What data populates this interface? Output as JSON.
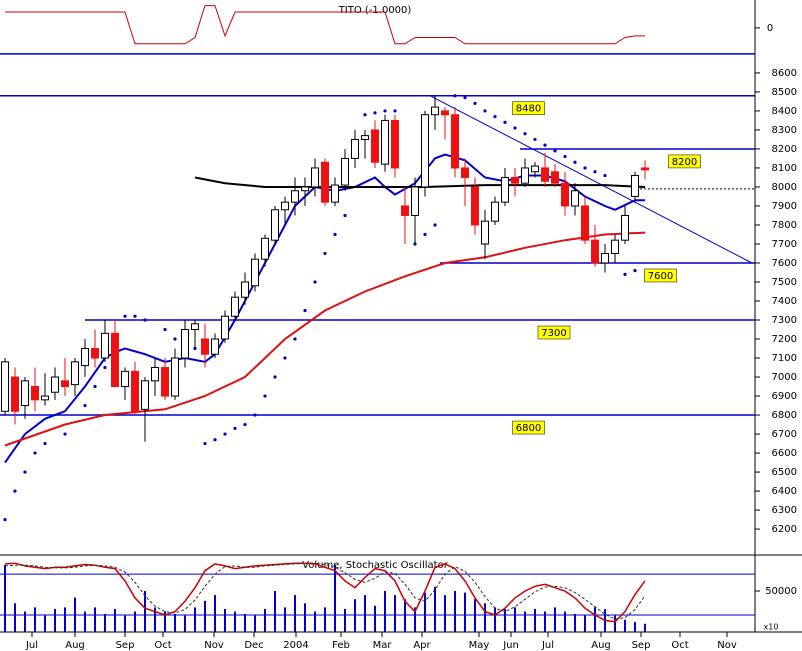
{
  "chart_data": [
    {
      "type": "candlestick",
      "xlim": [
        -0.5,
        75
      ],
      "xticks": [
        {
          "value": 2.7,
          "label": "Jul"
        },
        {
          "value": 7,
          "label": "Aug"
        },
        {
          "value": 12,
          "label": "Sep"
        },
        {
          "value": 15.8,
          "label": "Oct"
        },
        {
          "value": 20.9,
          "label": "Nov"
        },
        {
          "value": 24.9,
          "label": "Dec"
        },
        {
          "value": 29.1,
          "label": "2004"
        },
        {
          "value": 33.6,
          "label": "Feb"
        },
        {
          "value": 37.7,
          "label": "Mar"
        },
        {
          "value": 41.7,
          "label": "Apr"
        },
        {
          "value": 47.4,
          "label": "May"
        },
        {
          "value": 50.6,
          "label": "Jun"
        },
        {
          "value": 54.3,
          "label": "Jul"
        },
        {
          "value": 59.6,
          "label": "Aug"
        },
        {
          "value": 63.6,
          "label": "Sep"
        },
        {
          "value": 67.5,
          "label": "Oct"
        },
        {
          "value": 72.2,
          "label": "Nov"
        }
      ],
      "ylim": [
        6090,
        8710
      ],
      "yticks": [
        8600,
        8500,
        8400,
        8300,
        8200,
        8100,
        8000,
        7900,
        7800,
        7700,
        7600,
        7500,
        7400,
        7300,
        7200,
        7100,
        7000,
        6900,
        6800,
        6700,
        6600,
        6500,
        6400,
        6300,
        6200
      ],
      "open": [
        6820,
        7000,
        6850,
        6950,
        6880,
        6920,
        6980,
        6960,
        7060,
        7150,
        7100,
        7230,
        6950,
        7030,
        6830,
        6980,
        7050,
        6900,
        7100,
        7250,
        7200,
        7120,
        7200,
        7320,
        7420,
        7480,
        7620,
        7720,
        7880,
        7920,
        7980,
        8000,
        8130,
        7920,
        8010,
        8150,
        8250,
        8300,
        8120,
        8350,
        7900,
        7850,
        8000,
        8380,
        8400,
        8380,
        8100,
        8000,
        7700,
        7820,
        7920,
        8050,
        8020,
        8080,
        8100,
        8080,
        8020,
        7900,
        7900,
        7720,
        7600,
        7650,
        7720,
        7950,
        8100
      ],
      "high": [
        7100,
        7050,
        7000,
        7050,
        7020,
        7050,
        7100,
        7100,
        7200,
        7250,
        7300,
        7300,
        7050,
        7080,
        7000,
        7100,
        7100,
        7150,
        7300,
        7300,
        7280,
        7230,
        7350,
        7450,
        7550,
        7650,
        7750,
        7900,
        7950,
        8050,
        8050,
        8150,
        8150,
        8050,
        8200,
        8300,
        8300,
        8350,
        8380,
        8380,
        8000,
        8050,
        8400,
        8480,
        8420,
        8420,
        8150,
        8050,
        7880,
        7950,
        8100,
        8100,
        8150,
        8130,
        8180,
        8120,
        8080,
        8020,
        7950,
        7800,
        7700,
        7750,
        7900,
        8080,
        8140
      ],
      "low": [
        6800,
        6750,
        6780,
        6820,
        6850,
        6880,
        6900,
        6900,
        7000,
        7050,
        7080,
        6950,
        6880,
        6800,
        6660,
        6900,
        6880,
        6880,
        7050,
        7150,
        7050,
        7100,
        7180,
        7300,
        7380,
        7450,
        7580,
        7700,
        7800,
        7850,
        7900,
        7950,
        7900,
        7900,
        7980,
        8100,
        8150,
        8100,
        8080,
        8050,
        7700,
        7700,
        7950,
        8300,
        8250,
        8050,
        7900,
        7750,
        7620,
        7800,
        7900,
        7950,
        8000,
        8050,
        8000,
        8000,
        7850,
        7850,
        7700,
        7580,
        7550,
        7600,
        7700,
        7920,
        8040
      ],
      "close": [
        7080,
        6820,
        6980,
        6880,
        6900,
        7000,
        6950,
        7080,
        7150,
        7100,
        7230,
        6950,
        7030,
        6820,
        6980,
        7050,
        6900,
        7100,
        7250,
        7280,
        7120,
        7200,
        7320,
        7420,
        7500,
        7620,
        7730,
        7880,
        7920,
        7980,
        8000,
        8100,
        7920,
        8010,
        8150,
        8250,
        8270,
        8130,
        8350,
        8100,
        7850,
        8000,
        8380,
        8420,
        8380,
        8100,
        8050,
        7800,
        7820,
        7920,
        8050,
        8020,
        8100,
        8110,
        8030,
        8020,
        7900,
        7980,
        7720,
        7600,
        7650,
        7720,
        7850,
        8060,
        8090
      ],
      "up_color": "#ffffff",
      "down_color": "#ee1111",
      "series": [
        {
          "color": "#0000cc",
          "x": [
            0,
            2,
            4,
            6,
            8,
            10,
            11,
            12,
            14,
            16,
            18,
            20,
            21,
            23,
            25,
            27,
            29,
            31,
            33,
            35,
            37,
            38,
            39,
            41,
            43,
            44,
            46,
            48,
            50,
            52,
            54,
            56,
            58,
            60,
            61,
            63,
            64
          ],
          "values": [
            6550,
            6700,
            6780,
            6820,
            6950,
            7100,
            7130,
            7150,
            7120,
            7080,
            7100,
            7080,
            7120,
            7300,
            7500,
            7700,
            7900,
            8000,
            7980,
            8000,
            8050,
            8000,
            7960,
            8020,
            8150,
            8170,
            8140,
            8050,
            8030,
            8060,
            8060,
            8030,
            7950,
            7900,
            7880,
            7930,
            7930
          ]
        },
        {
          "color": "#dd1111",
          "x": [
            0,
            6,
            10,
            16,
            20,
            24,
            28,
            32,
            36,
            40,
            44,
            48,
            52,
            56,
            60,
            64
          ],
          "values": [
            6640,
            6750,
            6800,
            6830,
            6900,
            7000,
            7200,
            7350,
            7450,
            7530,
            7600,
            7630,
            7680,
            7720,
            7750,
            7760
          ]
        },
        {
          "color": "#000000",
          "x": [
            19,
            22,
            26,
            30,
            36,
            42,
            48,
            54,
            60,
            64
          ],
          "values": [
            8050,
            8020,
            8000,
            8000,
            8000,
            8000,
            8010,
            8010,
            8010,
            8000
          ]
        }
      ],
      "sar": {
        "color": "#0000cc",
        "x": [
          0,
          1,
          2,
          3,
          4,
          6,
          8,
          9,
          10,
          11,
          12,
          13,
          14,
          16,
          17,
          18,
          19,
          20,
          21,
          22,
          23,
          24,
          25,
          26,
          27,
          28,
          29,
          30,
          31,
          32,
          33,
          34,
          36,
          37,
          38,
          39,
          41,
          42,
          43,
          45,
          46,
          47,
          48,
          49,
          50,
          51,
          52,
          53,
          54,
          55,
          56,
          57,
          58,
          59,
          60,
          62,
          63
        ],
        "values": [
          6250,
          6400,
          6500,
          6600,
          6650,
          6700,
          6850,
          6950,
          7050,
          7200,
          7320,
          7320,
          7300,
          7250,
          7200,
          7180,
          7150,
          6650,
          6670,
          6700,
          6730,
          6750,
          6800,
          6900,
          7000,
          7100,
          7200,
          7350,
          7500,
          7650,
          7750,
          7850,
          8380,
          8390,
          8400,
          8400,
          7700,
          7750,
          7800,
          8480,
          8470,
          8440,
          8400,
          8370,
          8340,
          8310,
          8280,
          8250,
          8220,
          8190,
          8160,
          8130,
          8100,
          8080,
          8060,
          7540,
          7560
        ]
      },
      "levels": [
        {
          "value": 8700,
          "x0": -0.5,
          "boxed": false
        },
        {
          "value": 8480,
          "x0": -0.5,
          "boxed": true
        },
        {
          "value": 8200,
          "x0": 51.5,
          "boxed": true
        },
        {
          "value": 7600,
          "x0": 43.5,
          "boxed": true
        },
        {
          "value": 7300,
          "x0": 8,
          "boxed": true
        },
        {
          "value": 6800,
          "x0": -0.5,
          "boxed": true
        }
      ],
      "level_color": "#0000cc",
      "box_color": "#ffff00",
      "trendline": {
        "x": [
          42.5,
          74.7
        ],
        "values": [
          8480,
          7600
        ]
      },
      "reference": {
        "x": [
          63.5,
          75
        ],
        "values": [
          7990,
          7990
        ]
      }
    },
    {
      "type": "line",
      "title": "TITO (-1.0000)",
      "color": "#cc0000",
      "ylim": [
        -1.7,
        1.75
      ],
      "yticks": [
        0
      ],
      "values": [
        1,
        1,
        1,
        1,
        1,
        1,
        1,
        1,
        1,
        1,
        1,
        1,
        1,
        -1,
        -1,
        -1,
        -1,
        -1,
        -1,
        -0.6,
        1.4,
        1.4,
        -0.5,
        1,
        1,
        1,
        1,
        1,
        1,
        1,
        1,
        1,
        1,
        1,
        1,
        1,
        1,
        1,
        1,
        -1,
        -1,
        -0.6,
        -0.6,
        -0.6,
        -0.6,
        -0.6,
        -1,
        -1,
        -1,
        -1,
        -1,
        -1,
        -1,
        -1,
        -1,
        -1,
        -1,
        -1,
        -1,
        -1,
        -1,
        -1,
        -0.6,
        -0.5,
        -0.5
      ]
    },
    {
      "type": "bar",
      "title": "Volume, Stochastic Oscillator",
      "ylabel": "x10",
      "color": "#0000cc",
      "ylim": [
        0,
        93900
      ],
      "yticks": [
        50000
      ],
      "values": [
        82000,
        35000,
        25000,
        30000,
        20000,
        28000,
        30000,
        42000,
        25000,
        30000,
        22000,
        28000,
        20000,
        25000,
        50000,
        30000,
        25000,
        22000,
        20000,
        30000,
        38000,
        45000,
        28000,
        25000,
        22000,
        20000,
        28000,
        50000,
        30000,
        45000,
        35000,
        25000,
        30000,
        82000,
        28000,
        40000,
        45000,
        32000,
        50000,
        45000,
        40000,
        30000,
        48000,
        55000,
        45000,
        50000,
        48000,
        40000,
        35000,
        30000,
        28000,
        30000,
        25000,
        28000,
        25000,
        30000,
        25000,
        22000,
        20000,
        30000,
        28000,
        20000,
        15000,
        12000,
        10000
      ],
      "y2lim": [
        -5,
        108
      ],
      "levels": [
        80,
        20
      ],
      "series": [
        {
          "color": "#cc0000",
          "axis": "y2",
          "dashed": false,
          "values": [
            95,
            96,
            92,
            90,
            88,
            90,
            90,
            92,
            94,
            93,
            90,
            88,
            70,
            45,
            30,
            25,
            20,
            25,
            40,
            60,
            85,
            95,
            92,
            88,
            90,
            92,
            93,
            94,
            95,
            96,
            96,
            95,
            90,
            85,
            70,
            60,
            75,
            88,
            85,
            70,
            40,
            25,
            55,
            90,
            95,
            88,
            70,
            45,
            25,
            20,
            30,
            45,
            55,
            62,
            65,
            60,
            55,
            45,
            30,
            20,
            12,
            10,
            25,
            50,
            70
          ]
        },
        {
          "color": "#333333",
          "axis": "y2",
          "dashed": true,
          "values": [
            92,
            93,
            93,
            92,
            90,
            89,
            89,
            90,
            92,
            93,
            92,
            90,
            83,
            68,
            48,
            33,
            25,
            23,
            28,
            42,
            62,
            80,
            91,
            92,
            90,
            90,
            92,
            93,
            94,
            95,
            96,
            96,
            94,
            90,
            82,
            72,
            68,
            74,
            83,
            81,
            65,
            45,
            40,
            57,
            80,
            91,
            84,
            68,
            47,
            30,
            25,
            32,
            43,
            54,
            61,
            62,
            60,
            53,
            43,
            32,
            21,
            14,
            16,
            28,
            48
          ]
        }
      ]
    }
  ]
}
